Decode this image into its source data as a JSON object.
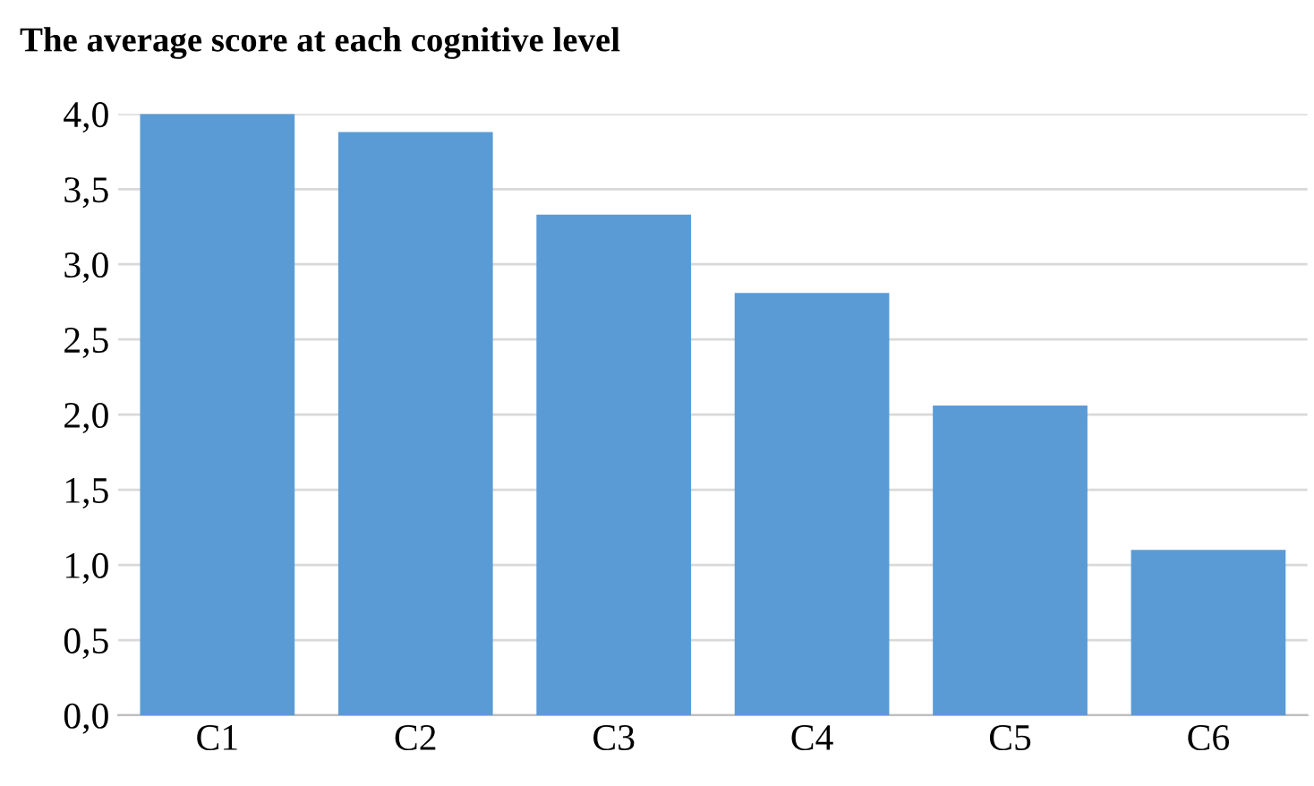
{
  "chart_data": {
    "type": "bar",
    "title": "The average score at each cognitive level",
    "categories": [
      "C1",
      "C2",
      "C3",
      "C4",
      "C5",
      "C6"
    ],
    "values": [
      4.0,
      3.88,
      3.33,
      2.81,
      2.06,
      1.1
    ],
    "color": "#5b9bd5",
    "ylim": [
      0,
      4
    ],
    "yticks": [
      {
        "value": 0,
        "label": "0,0"
      },
      {
        "value": 0.5,
        "label": "0,5"
      },
      {
        "value": 1,
        "label": "1,0"
      },
      {
        "value": 1.5,
        "label": "1,5"
      },
      {
        "value": 2,
        "label": "2,0"
      },
      {
        "value": 2.5,
        "label": "2,5"
      },
      {
        "value": 3,
        "label": "3,0"
      },
      {
        "value": 3.5,
        "label": "3,5"
      },
      {
        "value": 4,
        "label": "4,0"
      }
    ],
    "grid": "y"
  }
}
